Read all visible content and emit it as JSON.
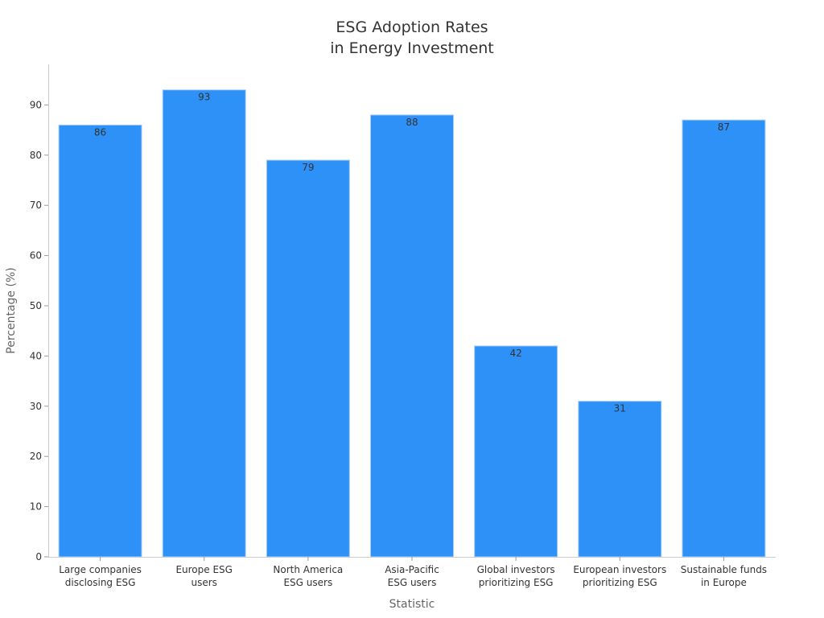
{
  "chart_data": {
    "type": "bar",
    "title_lines": [
      "ESG Adoption Rates",
      "in Energy Investment"
    ],
    "xlabel": "Statistic",
    "ylabel": "Percentage (%)",
    "categories": [
      [
        "Large companies",
        "disclosing ESG"
      ],
      [
        "Europe ESG",
        "users"
      ],
      [
        "North America",
        "ESG users"
      ],
      [
        "Asia-Pacific",
        "ESG users"
      ],
      [
        "Global investors",
        "prioritizing ESG"
      ],
      [
        "European investors",
        "prioritizing ESG"
      ],
      [
        "Sustainable funds",
        "in Europe"
      ]
    ],
    "values": [
      86,
      93,
      79,
      88,
      42,
      31,
      87
    ],
    "yticks": [
      0,
      10,
      20,
      30,
      40,
      50,
      60,
      70,
      80,
      90
    ],
    "ylim": [
      0,
      98
    ],
    "bar_color": "#2e91f8",
    "bar_edge_color": "#a8cffb",
    "grid": false,
    "legend": false
  }
}
